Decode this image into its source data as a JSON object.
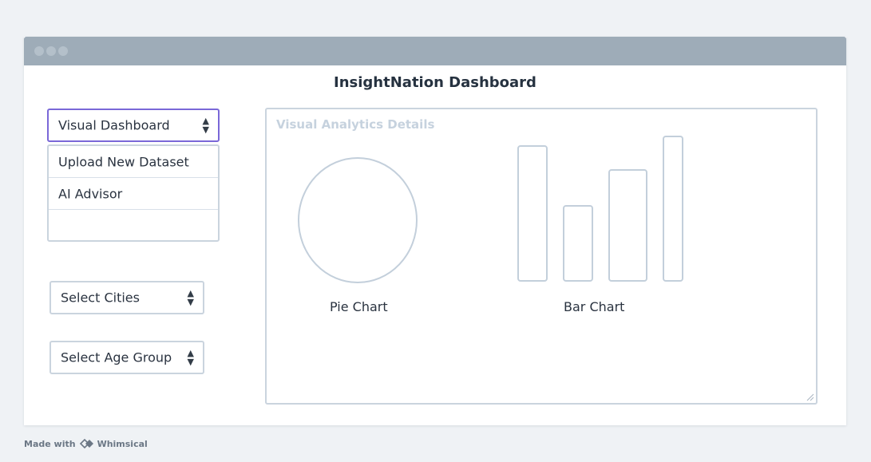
{
  "window": {
    "title": "InsightNation Dashboard"
  },
  "nav": {
    "selected": "Visual Dashboard",
    "options": [
      "Upload New Dataset",
      "AI Advisor",
      ""
    ]
  },
  "filters": {
    "cities": "Select Cities",
    "age_group": "Select Age Group"
  },
  "panel": {
    "title": "Visual Analytics Details",
    "pie_label": "Pie Chart",
    "bar_label": "Bar Chart"
  },
  "footer": {
    "made_with": "Made with",
    "brand": "Whimsical"
  },
  "colors": {
    "titlebar": "#9eacb8",
    "active_border": "#7a68d8",
    "border": "#cad4de",
    "muted_title": "#c6d2de"
  },
  "icons": {
    "select_arrow": "updown-arrows-icon"
  }
}
